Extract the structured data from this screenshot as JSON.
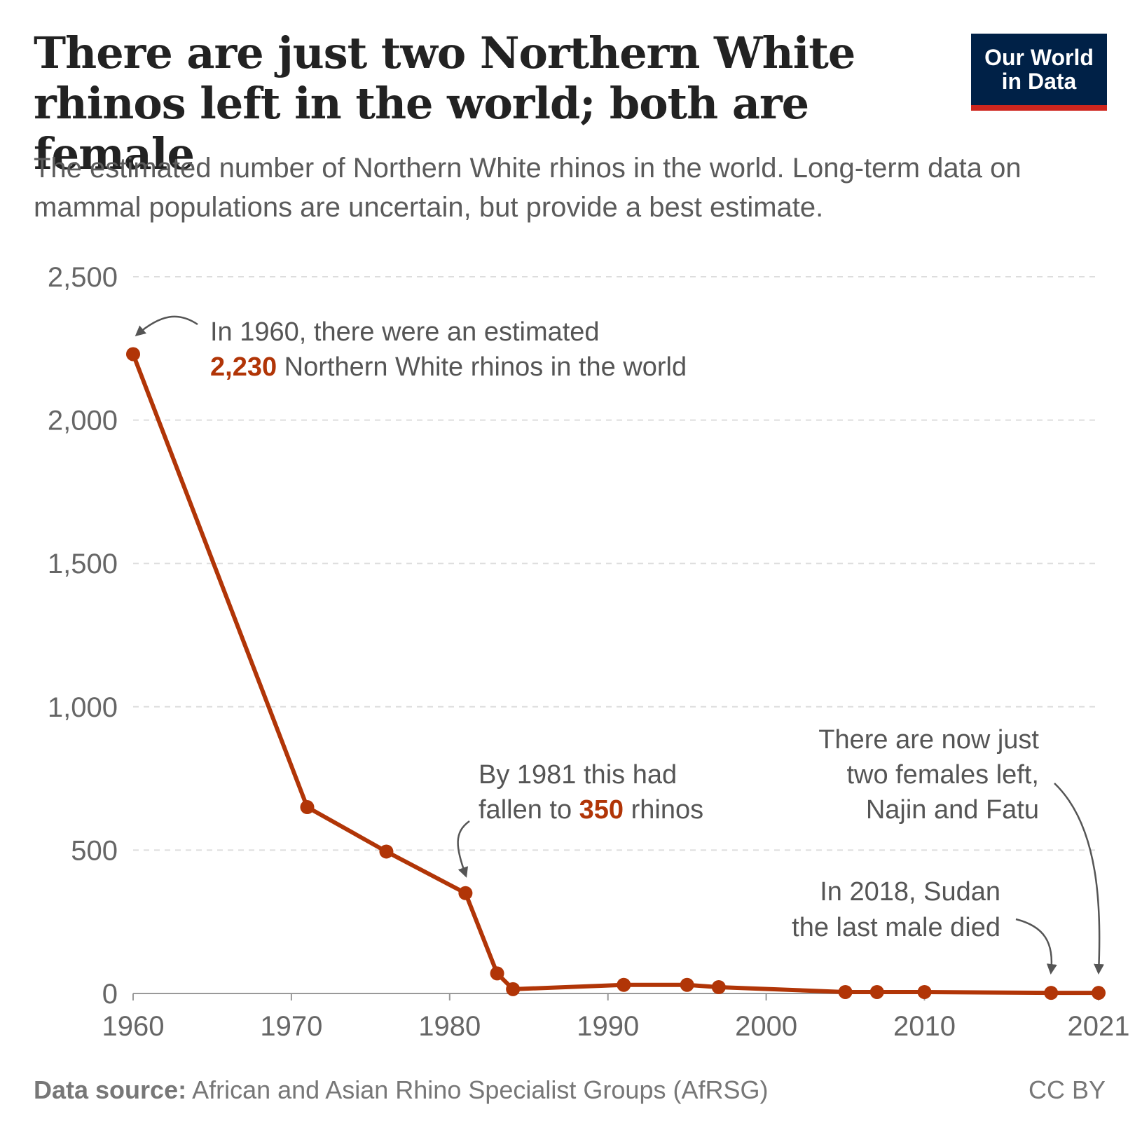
{
  "header": {
    "title": "There are just two Northern White rhinos left in the world; both are female",
    "subtitle": "The estimated number of Northern White rhinos in the world. Long-term data on mammal populations are uncertain, but provide a best estimate.",
    "logo_line1": "Our World",
    "logo_line2": "in Data"
  },
  "colors": {
    "series": "#b13507",
    "title": "#222222",
    "text": "#5b5b5b",
    "grid": "#dddddd",
    "logo_bg": "#002147",
    "logo_accent": "#ce261e"
  },
  "chart_data": {
    "type": "line",
    "title": "There are just two Northern White rhinos left in the world; both are female",
    "xlabel": "",
    "ylabel": "",
    "xlim": [
      1960,
      2021
    ],
    "ylim": [
      0,
      2500
    ],
    "y_ticks": [
      0,
      500,
      1000,
      1500,
      2000,
      2500
    ],
    "y_tick_labels": [
      "0",
      "500",
      "1,000",
      "1,500",
      "2,000",
      "2,500"
    ],
    "x_ticks": [
      1960,
      1970,
      1980,
      1990,
      2000,
      2010,
      2021
    ],
    "x_tick_labels": [
      "1960",
      "1970",
      "1980",
      "1990",
      "2000",
      "2010",
      "2021"
    ],
    "grid": true,
    "series": [
      {
        "name": "Northern White rhinos",
        "x": [
          1960,
          1971,
          1976,
          1981,
          1983,
          1984,
          1991,
          1995,
          1997,
          2005,
          2007,
          2010,
          2018,
          2021
        ],
        "values": [
          2230,
          650,
          495,
          350,
          70,
          15,
          30,
          30,
          22,
          5,
          5,
          5,
          2,
          2
        ]
      }
    ]
  },
  "annotations": {
    "a1960_line1": "In 1960, there were an estimated",
    "a1960_value": "2,230",
    "a1960_line2_rest": " Northern White rhinos in the world",
    "a1981_line1": "By 1981 this had",
    "a1981_line2_pre": "fallen to ",
    "a1981_value": "350",
    "a1981_line2_post": " rhinos",
    "a2021_line1": "There are now just",
    "a2021_line2": "two females left,",
    "a2021_line3": "Najin and Fatu",
    "a2018_line1": "In 2018, Sudan",
    "a2018_line2": "the last male died"
  },
  "footer": {
    "source_label": "Data source:",
    "source_text": " African and Asian Rhino Specialist Groups (AfRSG)",
    "license": "CC BY"
  }
}
